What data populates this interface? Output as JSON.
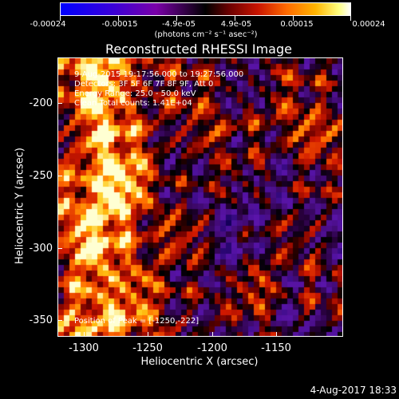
{
  "colorbar": {
    "tick_labels": [
      "-0.00024",
      "-0.00015",
      "-4.9e-05",
      "4.9e-05",
      "0.00015",
      "0.00024"
    ],
    "units": "(photons cm⁻² s⁻¹ asec⁻²)"
  },
  "title": "Reconstructed RHESSI Image",
  "info": {
    "time": "9-Aug-2015 19:17:56.000 to 19:27:56.000",
    "detectors": "Detectors: 3F 5F 6F 7F 8F 9F, Att 0",
    "energy": "Energy Range: 25.0 - 50.0 keV",
    "clean": "Clean     Total counts: 1.41E+04",
    "peak": "Position of Peak = [-1250,-222]"
  },
  "axes": {
    "xlabel": "Heliocentric X (arcsec)",
    "ylabel": "Heliocentric Y (arcsec)",
    "xticks": [
      "-1300",
      "-1250",
      "-1200",
      "-1150"
    ],
    "yticks": [
      "-200",
      "-250",
      "-300",
      "-350"
    ]
  },
  "footer": "4-Aug-2017 18:33"
}
